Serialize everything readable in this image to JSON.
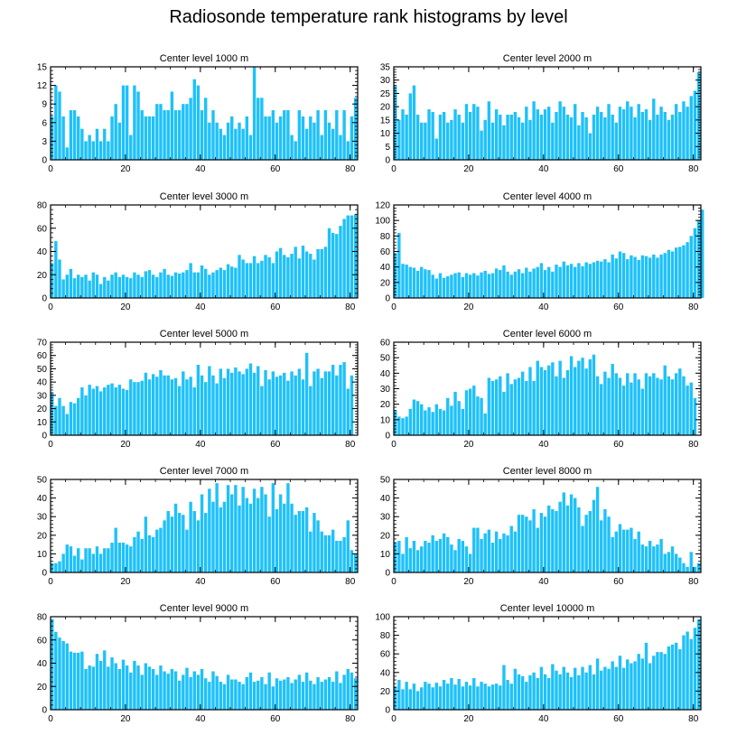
{
  "title": "Radiosonde temperature rank histograms by level",
  "bar_color": "#1ec1fa",
  "chart_data": [
    {
      "type": "bar",
      "title": "Center level 1000 m",
      "ylim": [
        0,
        15
      ],
      "yticks": [
        0,
        3,
        6,
        9,
        12,
        15
      ],
      "xlim": [
        0,
        82
      ],
      "xticks": [
        0,
        20,
        40,
        60,
        80
      ],
      "values": [
        7,
        12,
        11,
        7,
        2,
        8,
        8,
        7,
        5,
        3,
        4,
        3,
        5,
        3,
        5,
        3,
        7,
        9,
        6,
        12,
        12,
        4,
        12,
        11,
        8,
        7,
        7,
        7,
        9,
        9,
        8,
        8,
        11,
        8,
        8,
        9,
        9,
        10,
        13,
        12,
        8,
        10,
        6,
        8,
        6,
        5,
        4,
        6,
        7,
        5,
        6,
        5,
        7,
        4,
        15,
        10,
        10,
        7,
        7,
        8,
        6,
        7,
        8,
        8,
        4,
        3,
        8,
        7,
        5,
        7,
        6,
        8,
        4,
        8,
        6,
        5,
        8,
        4,
        8,
        3,
        7,
        10
      ]
    },
    {
      "type": "bar",
      "title": "Center level 2000 m",
      "ylim": [
        0,
        35
      ],
      "yticks": [
        0,
        5,
        10,
        15,
        20,
        25,
        30,
        35
      ],
      "xlim": [
        0,
        82
      ],
      "xticks": [
        0,
        20,
        40,
        60,
        80
      ],
      "values": [
        28,
        15,
        19,
        17,
        25,
        28,
        17,
        14,
        14,
        19,
        18,
        8,
        17,
        18,
        14,
        15,
        19,
        17,
        14,
        21,
        18,
        21,
        20,
        11,
        15,
        22,
        14,
        19,
        17,
        13,
        17,
        17,
        18,
        16,
        14,
        20,
        15,
        22,
        19,
        17,
        19,
        20,
        14,
        18,
        22,
        20,
        17,
        16,
        21,
        13,
        18,
        16,
        10,
        17,
        20,
        18,
        16,
        21,
        17,
        14,
        20,
        19,
        22,
        20,
        16,
        21,
        18,
        19,
        15,
        23,
        17,
        20,
        18,
        15,
        17,
        21,
        18,
        22,
        20,
        24,
        26,
        33
      ]
    },
    {
      "type": "bar",
      "title": "Center level 3000 m",
      "ylim": [
        0,
        80
      ],
      "yticks": [
        0,
        20,
        40,
        60,
        80
      ],
      "xlim": [
        0,
        82
      ],
      "xticks": [
        0,
        20,
        40,
        60,
        80
      ],
      "values": [
        30,
        49,
        33,
        16,
        20,
        25,
        17,
        20,
        18,
        20,
        15,
        22,
        20,
        12,
        18,
        15,
        20,
        22,
        18,
        20,
        18,
        17,
        22,
        20,
        18,
        23,
        24,
        20,
        18,
        22,
        25,
        20,
        19,
        22,
        21,
        22,
        24,
        30,
        22,
        22,
        28,
        25,
        20,
        22,
        24,
        26,
        24,
        29,
        27,
        26,
        37,
        33,
        30,
        30,
        36,
        30,
        32,
        37,
        35,
        30,
        40,
        43,
        37,
        35,
        38,
        44,
        34,
        45,
        40,
        38,
        33,
        42,
        42,
        44,
        60,
        56,
        55,
        62,
        68,
        71,
        71,
        72
      ]
    },
    {
      "type": "bar",
      "title": "Center level 4000 m",
      "ylim": [
        0,
        120
      ],
      "yticks": [
        0,
        20,
        40,
        60,
        80,
        100,
        120
      ],
      "xlim": [
        0,
        82
      ],
      "xticks": [
        0,
        20,
        40,
        60,
        80
      ],
      "values": [
        58,
        84,
        44,
        43,
        40,
        39,
        35,
        40,
        37,
        36,
        30,
        25,
        32,
        26,
        28,
        30,
        32,
        33,
        27,
        32,
        30,
        32,
        29,
        33,
        35,
        31,
        32,
        38,
        36,
        42,
        34,
        30,
        34,
        37,
        32,
        39,
        34,
        38,
        40,
        45,
        36,
        40,
        34,
        43,
        40,
        47,
        42,
        44,
        40,
        45,
        41,
        46,
        44,
        46,
        48,
        47,
        50,
        46,
        56,
        51,
        60,
        58,
        50,
        55,
        53,
        49,
        55,
        54,
        52,
        56,
        52,
        56,
        58,
        62,
        60,
        65,
        66,
        68,
        72,
        80,
        90,
        100,
        114
      ]
    },
    {
      "type": "bar",
      "title": "Center level 5000 m",
      "ylim": [
        0,
        70
      ],
      "yticks": [
        0,
        10,
        20,
        30,
        40,
        50,
        60,
        70
      ],
      "xlim": [
        0,
        82
      ],
      "xticks": [
        0,
        20,
        40,
        60,
        80
      ],
      "values": [
        32,
        22,
        28,
        22,
        16,
        25,
        24,
        28,
        36,
        30,
        38,
        35,
        37,
        33,
        36,
        38,
        39,
        36,
        38,
        35,
        34,
        42,
        40,
        40,
        41,
        47,
        42,
        46,
        44,
        49,
        45,
        45,
        42,
        43,
        37,
        48,
        42,
        44,
        36,
        53,
        45,
        40,
        52,
        45,
        39,
        50,
        43,
        50,
        47,
        51,
        48,
        46,
        50,
        54,
        47,
        52,
        37,
        49,
        42,
        48,
        44,
        45,
        47,
        41,
        48,
        45,
        50,
        42,
        62,
        37,
        48,
        50,
        43,
        48,
        48,
        53,
        45,
        53,
        55,
        35,
        45
      ]
    },
    {
      "type": "bar",
      "title": "Center level 6000 m",
      "ylim": [
        0,
        60
      ],
      "yticks": [
        0,
        10,
        20,
        30,
        40,
        50,
        60
      ],
      "xlim": [
        0,
        82
      ],
      "xticks": [
        0,
        20,
        40,
        60,
        80
      ],
      "values": [
        16,
        12,
        11,
        12,
        17,
        23,
        22,
        20,
        16,
        18,
        15,
        20,
        17,
        16,
        24,
        19,
        28,
        22,
        17,
        29,
        30,
        32,
        25,
        24,
        14,
        37,
        35,
        36,
        38,
        28,
        40,
        33,
        36,
        37,
        41,
        35,
        44,
        35,
        48,
        44,
        42,
        45,
        47,
        38,
        48,
        37,
        42,
        51,
        44,
        48,
        50,
        43,
        49,
        52,
        38,
        33,
        41,
        37,
        46,
        40,
        37,
        32,
        40,
        34,
        40,
        36,
        30,
        40,
        38,
        40,
        37,
        36,
        45,
        38,
        36,
        40,
        43,
        38,
        32,
        34,
        24
      ]
    },
    {
      "type": "bar",
      "title": "Center level 7000 m",
      "ylim": [
        0,
        50
      ],
      "yticks": [
        0,
        10,
        20,
        30,
        40,
        50
      ],
      "xlim": [
        0,
        82
      ],
      "xticks": [
        0,
        20,
        40,
        60,
        80
      ],
      "values": [
        5,
        5,
        6,
        10,
        15,
        14,
        9,
        13,
        7,
        13,
        13,
        10,
        14,
        10,
        13,
        13,
        16,
        24,
        16,
        16,
        15,
        14,
        19,
        22,
        18,
        30,
        20,
        19,
        23,
        24,
        28,
        33,
        30,
        37,
        32,
        31,
        23,
        38,
        33,
        28,
        42,
        32,
        45,
        38,
        48,
        35,
        38,
        47,
        42,
        47,
        36,
        46,
        40,
        37,
        45,
        40,
        46,
        42,
        30,
        48,
        34,
        42,
        37,
        48,
        37,
        31,
        33,
        33,
        35,
        22,
        32,
        28,
        22,
        20,
        20,
        23,
        17,
        17,
        19,
        28,
        12,
        10
      ]
    },
    {
      "type": "bar",
      "title": "Center level 8000 m",
      "ylim": [
        0,
        50
      ],
      "yticks": [
        0,
        10,
        20,
        30,
        40,
        50
      ],
      "xlim": [
        0,
        82
      ],
      "xticks": [
        0,
        20,
        40,
        60,
        80
      ],
      "values": [
        16,
        17,
        10,
        19,
        13,
        17,
        12,
        14,
        17,
        16,
        20,
        17,
        18,
        21,
        19,
        15,
        12,
        18,
        17,
        14,
        10,
        24,
        24,
        18,
        21,
        23,
        16,
        22,
        18,
        21,
        20,
        25,
        22,
        31,
        31,
        30,
        28,
        34,
        24,
        32,
        30,
        36,
        34,
        33,
        38,
        43,
        36,
        42,
        40,
        35,
        25,
        31,
        33,
        39,
        46,
        28,
        34,
        30,
        19,
        22,
        26,
        23,
        23,
        24,
        18,
        22,
        15,
        14,
        17,
        14,
        15,
        18,
        10,
        11,
        14,
        10,
        8,
        5,
        3,
        11,
        3,
        5
      ]
    },
    {
      "type": "bar",
      "title": "Center level 9000 m",
      "ylim": [
        0,
        80
      ],
      "yticks": [
        0,
        20,
        40,
        60,
        80
      ],
      "xlim": [
        0,
        82
      ],
      "xticks": [
        0,
        20,
        40,
        60,
        80
      ],
      "values": [
        78,
        67,
        62,
        59,
        57,
        50,
        49,
        49,
        50,
        35,
        38,
        37,
        48,
        42,
        51,
        37,
        45,
        40,
        35,
        43,
        38,
        32,
        42,
        38,
        30,
        40,
        37,
        35,
        30,
        38,
        33,
        31,
        35,
        33,
        25,
        30,
        36,
        28,
        33,
        30,
        35,
        27,
        24,
        33,
        29,
        24,
        22,
        30,
        26,
        26,
        24,
        22,
        28,
        32,
        24,
        25,
        28,
        22,
        32,
        20,
        27,
        25,
        26,
        28,
        23,
        26,
        30,
        24,
        32,
        25,
        22,
        28,
        24,
        26,
        28,
        24,
        33,
        23,
        30,
        35,
        32,
        27
      ]
    },
    {
      "type": "bar",
      "title": "Center level 10000 m",
      "ylim": [
        0,
        100
      ],
      "yticks": [
        0,
        20,
        40,
        60,
        80,
        100
      ],
      "xlim": [
        0,
        82
      ],
      "xticks": [
        0,
        20,
        40,
        60,
        80
      ],
      "values": [
        25,
        32,
        22,
        30,
        22,
        28,
        20,
        24,
        30,
        28,
        24,
        29,
        25,
        32,
        28,
        34,
        27,
        33,
        25,
        30,
        26,
        34,
        25,
        30,
        28,
        25,
        27,
        28,
        26,
        48,
        32,
        28,
        44,
        38,
        36,
        30,
        37,
        40,
        34,
        46,
        38,
        34,
        49,
        42,
        38,
        46,
        40,
        35,
        45,
        37,
        46,
        40,
        48,
        38,
        55,
        42,
        46,
        44,
        52,
        46,
        58,
        45,
        54,
        50,
        52,
        60,
        55,
        72,
        50,
        58,
        62,
        62,
        60,
        68,
        70,
        72,
        65,
        80,
        84,
        76,
        88,
        97
      ]
    }
  ]
}
